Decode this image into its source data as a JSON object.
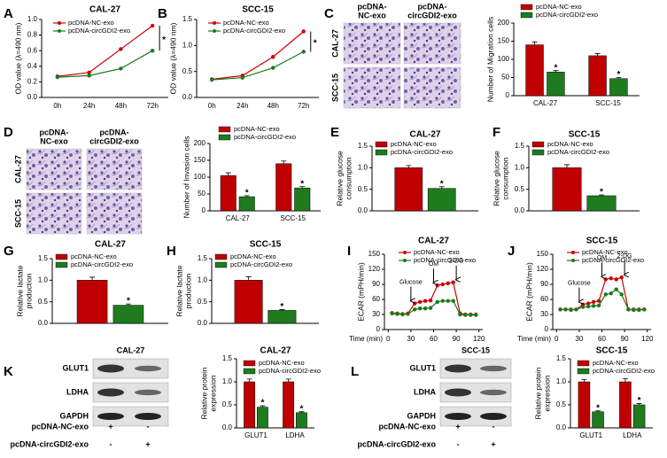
{
  "chart_data": [
    {
      "type": "line",
      "panel": "A",
      "title": "CAL-27",
      "ylabel": [
        "OD value (λ=490 nm)"
      ],
      "categories": [
        "0h",
        "24h",
        "48h",
        "72h"
      ],
      "series": [
        {
          "name": "pcDNA-NC-exo",
          "color": "#cc0000",
          "values": [
            0.27,
            0.32,
            0.62,
            0.92
          ]
        },
        {
          "name": "pcDNA-circGDI2-exo",
          "color": "#1a7a1a",
          "values": [
            0.26,
            0.28,
            0.37,
            0.6
          ],
          "significance": "*"
        }
      ],
      "ylim": [
        0,
        1
      ],
      "yticks": [
        {
          "value": 0,
          "label": "0.0"
        },
        0.2,
        0.4,
        0.6,
        0.8,
        {
          "value": 1,
          "label": "1.0"
        }
      ]
    },
    {
      "type": "line",
      "panel": "B",
      "title": "SCC-15",
      "ylabel": [
        "OD value (λ=490 nm)"
      ],
      "categories": [
        "0h",
        "24h",
        "48h",
        "72h"
      ],
      "series": [
        {
          "name": "pcDNA-NC-exo",
          "color": "#cc0000",
          "values": [
            0.35,
            0.42,
            0.78,
            1.27
          ]
        },
        {
          "name": "pcDNA-circGDI2-exo",
          "color": "#1a7a1a",
          "values": [
            0.34,
            0.38,
            0.57,
            0.88
          ],
          "significance": "*"
        }
      ],
      "ylim": [
        0,
        1.5
      ],
      "yticks": [
        {
          "value": 0,
          "label": "0.0"
        },
        0.5,
        {
          "value": 1,
          "label": "1.0"
        },
        1.5
      ]
    },
    {
      "type": "bar",
      "panel": "C",
      "ylabel": [
        "Number of Migration cells"
      ],
      "image_columns": [
        [
          "pcDNA-",
          "NC-exo"
        ],
        [
          "pcDNA-",
          "circGDI2-exo"
        ]
      ],
      "image_rows": [
        "CAL-27",
        "SCC-15"
      ],
      "categories": [
        "CAL-27",
        "SCC-15"
      ],
      "series": [
        {
          "name": "pcDNA-NC-exo",
          "color": "#c00000",
          "values": [
            140,
            110
          ],
          "errors": [
            8,
            6
          ]
        },
        {
          "name": "pcDNA-circGDI2-exo",
          "color": "#1e7b1e",
          "values": [
            65,
            47
          ],
          "errors": [
            4,
            3
          ],
          "significance": "*"
        }
      ],
      "ylim": [
        0,
        200
      ],
      "yticks": [
        0,
        50,
        100,
        150,
        200
      ]
    },
    {
      "type": "bar",
      "panel": "D",
      "ylabel": [
        "Number of Invasion cells"
      ],
      "image_columns": [
        [
          "pcDNA-",
          "NC-exo"
        ],
        [
          "pcDNA-",
          "circGDI2-exo"
        ]
      ],
      "image_rows": [
        "CAL-27",
        "SCC-15"
      ],
      "categories": [
        "CAL-27",
        "SCC-15"
      ],
      "series": [
        {
          "name": "pcDNA-NC-exo",
          "color": "#c00000",
          "values": [
            105,
            140
          ],
          "errors": [
            8,
            8
          ]
        },
        {
          "name": "pcDNA-circGDI2-exo",
          "color": "#1e7b1e",
          "values": [
            42,
            68
          ],
          "errors": [
            3,
            4
          ],
          "significance": "*"
        }
      ],
      "ylim": [
        0,
        200
      ],
      "yticks": [
        0,
        50,
        100,
        150,
        200
      ]
    },
    {
      "type": "bar",
      "panel": "E",
      "title": "CAL-27",
      "ylabel": [
        "Relative glucose",
        "consumption"
      ],
      "series": [
        {
          "name": "pcDNA-NC-exo",
          "color": "#c00000",
          "values": [
            1.0
          ],
          "errors": [
            0.05
          ]
        },
        {
          "name": "pcDNA-circGDI2-exo",
          "color": "#1e7b1e",
          "values": [
            0.52
          ],
          "errors": [
            0.04
          ],
          "significance": "*"
        }
      ],
      "ylim": [
        0,
        1.5
      ],
      "yticks": [
        {
          "value": 0,
          "label": "0.0"
        },
        0.5,
        {
          "value": 1,
          "label": "1.0"
        },
        1.5
      ]
    },
    {
      "type": "bar",
      "panel": "F",
      "title": "SCC-15",
      "ylabel": [
        "Relative glucose",
        "consumption"
      ],
      "series": [
        {
          "name": "pcDNA-NC-exo",
          "color": "#c00000",
          "values": [
            1.0
          ],
          "errors": [
            0.07
          ]
        },
        {
          "name": "pcDNA-circGDI2-exo",
          "color": "#1e7b1e",
          "values": [
            0.35
          ],
          "errors": [
            0.02
          ],
          "significance": "*"
        }
      ],
      "ylim": [
        0,
        1.5
      ],
      "yticks": [
        {
          "value": 0,
          "label": "0.0"
        },
        0.5,
        {
          "value": 1,
          "label": "1.0"
        },
        1.5
      ]
    },
    {
      "type": "bar",
      "panel": "G",
      "title": "CAL-27",
      "ylabel": [
        "Relative lactate",
        "production"
      ],
      "series": [
        {
          "name": "pcDNA-NC-exo",
          "color": "#c00000",
          "values": [
            1.0
          ],
          "errors": [
            0.07
          ]
        },
        {
          "name": "pcDNA-circGDI2-exo",
          "color": "#1e7b1e",
          "values": [
            0.42
          ],
          "errors": [
            0.03
          ],
          "significance": "*"
        }
      ],
      "ylim": [
        0,
        1.5
      ],
      "yticks": [
        {
          "value": 0,
          "label": "0.0"
        },
        0.5,
        {
          "value": 1,
          "label": "1.0"
        },
        1.5
      ]
    },
    {
      "type": "bar",
      "panel": "H",
      "title": "SCC-15",
      "ylabel": [
        "Relative lactate",
        "production"
      ],
      "series": [
        {
          "name": "pcDNA-NC-exo",
          "color": "#c00000",
          "values": [
            1.0
          ],
          "errors": [
            0.08
          ]
        },
        {
          "name": "pcDNA-circGDI2-exo",
          "color": "#1e7b1e",
          "values": [
            0.3
          ],
          "errors": [
            0.02
          ],
          "significance": "*"
        }
      ],
      "ylim": [
        0,
        1.5
      ],
      "yticks": [
        {
          "value": 0,
          "label": "0.0"
        },
        0.5,
        {
          "value": 1,
          "label": "1.0"
        },
        1.5
      ]
    },
    {
      "type": "line",
      "panel": "I",
      "title": "CAL-27",
      "ylabel": [
        "ECAR (mPH/min)"
      ],
      "xlabel": "Time (min)",
      "x": [
        5,
        12,
        19,
        26,
        35,
        42,
        49,
        56,
        65,
        72,
        79,
        86,
        95,
        102,
        109,
        116
      ],
      "series": [
        {
          "name": "pcDNA-NC-exo",
          "color": "#cc0000",
          "values": [
            33,
            32,
            31,
            32,
            52,
            55,
            57,
            58,
            88,
            90,
            92,
            94,
            32,
            30,
            30,
            30
          ]
        },
        {
          "name": "pcDNA-circGDI2-exo",
          "color": "#1a7a1a",
          "values": [
            32,
            31,
            30,
            31,
            40,
            42,
            42,
            43,
            55,
            57,
            57,
            57,
            30,
            29,
            29,
            29
          ]
        }
      ],
      "annotations": [
        {
          "text": "Glucose",
          "x": 30
        },
        {
          "text": "OM",
          "x": 60
        },
        {
          "text": "2-DG",
          "x": 90
        }
      ],
      "xlim": [
        -5,
        125
      ],
      "xticks": [
        0,
        30,
        60,
        90,
        120
      ],
      "ylim": [
        0,
        150
      ],
      "yticks": [
        0,
        30,
        60,
        90,
        120,
        150
      ]
    },
    {
      "type": "line",
      "panel": "J",
      "title": "SCC-15",
      "ylabel": [
        "ECAR (mPH/min)"
      ],
      "xlabel": "Time (min)",
      "x": [
        5,
        12,
        19,
        26,
        35,
        42,
        49,
        56,
        65,
        72,
        79,
        86,
        95,
        102,
        109,
        116
      ],
      "series": [
        {
          "name": "pcDNA-NC-exo",
          "color": "#cc0000",
          "values": [
            40,
            40,
            40,
            40,
            50,
            52,
            55,
            57,
            100,
            102,
            100,
            104,
            40,
            40,
            40,
            40
          ]
        },
        {
          "name": "pcDNA-circGDI2-exo",
          "color": "#1a7a1a",
          "values": [
            40,
            40,
            39,
            40,
            45,
            46,
            47,
            48,
            70,
            72,
            80,
            70,
            40,
            39,
            39,
            40
          ]
        }
      ],
      "annotations": [
        {
          "text": "Glucose",
          "x": 30
        },
        {
          "text": "OM",
          "x": 60
        },
        {
          "text": "2-DG",
          "x": 90
        }
      ],
      "xlim": [
        -5,
        125
      ],
      "xticks": [
        0,
        30,
        60,
        90,
        120
      ],
      "ylim": [
        0,
        150
      ],
      "yticks": [
        0,
        30,
        60,
        90,
        120,
        150
      ]
    },
    {
      "type": "bar",
      "panel": "K",
      "title": "CAL-27",
      "ylabel": [
        "Relative protein",
        "expression"
      ],
      "blot_title": "CAL-27",
      "blot_rows": [
        "GLUT1",
        "LDHA",
        "GAPDH"
      ],
      "treatments": [
        {
          "name": "pcDNA-NC-exo",
          "signs": [
            "+",
            "-"
          ]
        },
        {
          "name": "pcDNA-circGDI2-exo",
          "signs": [
            "-",
            "+"
          ]
        }
      ],
      "categories": [
        "GLUT1",
        "LDHA"
      ],
      "series": [
        {
          "name": "pcDNA-NC-exo",
          "color": "#c00000",
          "values": [
            1.0,
            1.0
          ],
          "errors": [
            0.06,
            0.06
          ]
        },
        {
          "name": "pcDNA-circGDI2-exo",
          "color": "#1e7b1e",
          "values": [
            0.45,
            0.33
          ],
          "errors": [
            0.03,
            0.02
          ],
          "significance": "*"
        }
      ],
      "ylim": [
        0,
        1.5
      ],
      "yticks": [
        {
          "value": 0,
          "label": "0.0"
        },
        0.5,
        {
          "value": 1,
          "label": "1.0"
        },
        1.5
      ]
    },
    {
      "type": "bar",
      "panel": "L",
      "title": "SCC-15",
      "ylabel": [
        "Relative protein",
        "expression"
      ],
      "blot_title": "SCC-15",
      "blot_rows": [
        "GLUT1",
        "LDHA",
        "GAPDH"
      ],
      "treatments": [
        {
          "name": "pcDNA-NC-exo",
          "signs": [
            "+",
            "-"
          ]
        },
        {
          "name": "pcDNA-circGDI2-exo",
          "signs": [
            "-",
            "+"
          ]
        }
      ],
      "categories": [
        "GLUT1",
        "LDHA"
      ],
      "series": [
        {
          "name": "pcDNA-NC-exo",
          "color": "#c00000",
          "values": [
            1.0,
            1.0
          ],
          "errors": [
            0.05,
            0.07
          ]
        },
        {
          "name": "pcDNA-circGDI2-exo",
          "color": "#1e7b1e",
          "values": [
            0.35,
            0.5
          ],
          "errors": [
            0.02,
            0.03
          ],
          "significance": "*"
        }
      ],
      "ylim": [
        0,
        1.5
      ],
      "yticks": [
        {
          "value": 0,
          "label": "0.0"
        },
        0.5,
        {
          "value": 1,
          "label": "1.0"
        },
        1.5
      ]
    }
  ]
}
